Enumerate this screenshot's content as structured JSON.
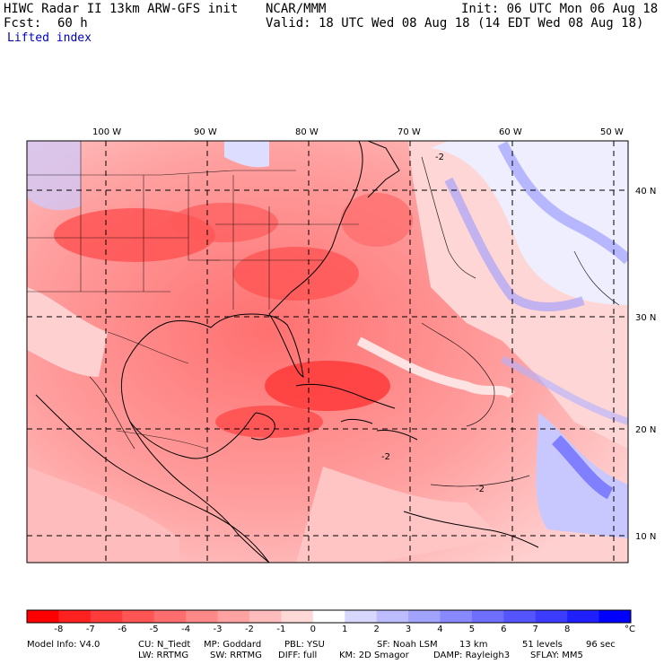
{
  "header": {
    "model": "HIWC Radar II 13km ARW-GFS init",
    "org": "NCAR/MMM",
    "init": "Init: 06 UTC Mon 06 Aug 18",
    "fcst_label": "Fcst:",
    "fcst_value": "60 h",
    "valid": "Valid: 18 UTC Wed 08 Aug 18 (14 EDT Wed 08 Aug 18)",
    "field": "Lifted index"
  },
  "map": {
    "lon_labels": [
      "100 W",
      "90 W",
      "80 W",
      "70 W",
      "60 W",
      "50 W"
    ],
    "lat_labels": [
      "40 N",
      "30 N",
      "20 N",
      "10 N"
    ],
    "contour_labels": [
      "-2",
      "-2",
      "-2"
    ]
  },
  "colorbar": {
    "labels": [
      "-8",
      "-7",
      "-6",
      "-5",
      "-4",
      "-3",
      "-2",
      "-1",
      "0",
      "1",
      "2",
      "3",
      "4",
      "5",
      "6",
      "7",
      "8"
    ],
    "unit": "°C",
    "colors": [
      "#ff0000",
      "#ff2020",
      "#ff3c3c",
      "#ff5555",
      "#ff6e6e",
      "#ff8888",
      "#ffa2a2",
      "#ffbcbc",
      "#ffd8d8",
      "#ffffff",
      "#d8d8ff",
      "#bcbcff",
      "#a2a2ff",
      "#8888ff",
      "#6e6eff",
      "#5555ff",
      "#3c3cff",
      "#2020ff",
      "#0000ff"
    ]
  },
  "footer": {
    "line1": [
      {
        "text": "Model Info: V4.0"
      },
      {
        "text": "CU: N_Tiedt"
      },
      {
        "text": "MP: Goddard"
      },
      {
        "text": "PBL: YSU"
      },
      {
        "text": "SF: Noah LSM"
      },
      {
        "text": "13 km"
      },
      {
        "text": "51 levels"
      },
      {
        "text": "96 sec"
      }
    ],
    "line2": [
      {
        "text": "LW: RRTMG"
      },
      {
        "text": "SW: RRTMG"
      },
      {
        "text": "DIFF: full"
      },
      {
        "text": "KM: 2D Smagor"
      },
      {
        "text": "DAMP: Rayleigh3"
      },
      {
        "text": "SFLAY: MM5"
      }
    ]
  }
}
